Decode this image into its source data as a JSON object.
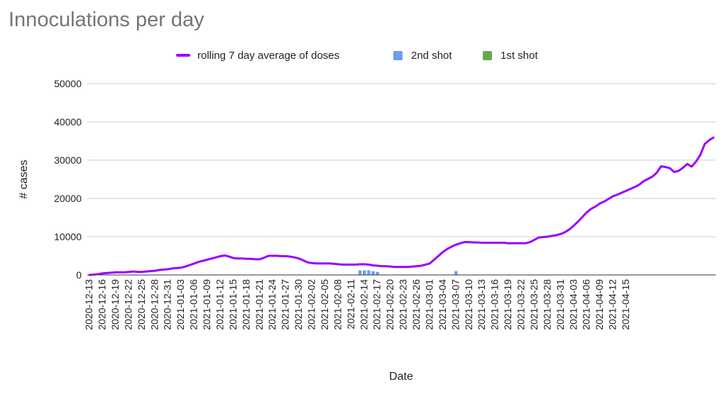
{
  "chart_data": {
    "type": "bar",
    "title": "Innoculations per day",
    "xlabel": "Date",
    "ylabel": "# cases",
    "ylim": [
      0,
      50000
    ],
    "y_ticks": [
      0,
      10000,
      20000,
      30000,
      40000,
      50000
    ],
    "stacked": true,
    "legend_position": "top",
    "grid": true,
    "colors": {
      "line": "#9900ff",
      "second": "#6d9eeb",
      "first": "#6aa84f"
    },
    "x_tick_labels": [
      "2020-12-13",
      "2020-12-16",
      "2020-12-19",
      "2020-12-22",
      "2020-12-25",
      "2020-12-28",
      "2020-12-31",
      "2021-01-03",
      "2021-01-06",
      "2021-01-09",
      "2021-01-12",
      "2021-01-15",
      "2021-01-18",
      "2021-01-21",
      "2021-01-24",
      "2021-01-27",
      "2021-01-30",
      "2021-02-02",
      "2021-02-05",
      "2021-02-08",
      "2021-02-11",
      "2021-02-14",
      "2021-02-17",
      "2021-02-20",
      "2021-02-23",
      "2021-02-26",
      "2021-03-01",
      "2021-03-04",
      "2021-03-07",
      "2021-03-10",
      "2021-03-13",
      "2021-03-16",
      "2021-03-19",
      "2021-03-22",
      "2021-03-25",
      "2021-03-28",
      "2021-03-31",
      "2021-04-03",
      "2021-04-06",
      "2021-04-09",
      "2021-04-12",
      "2021-04-15"
    ],
    "series": [
      {
        "name": "rolling 7 day average of doses",
        "kind": "line",
        "values": [
          0,
          100,
          200,
          400,
          500,
          600,
          700,
          700,
          700,
          800,
          900,
          800,
          800,
          900,
          1000,
          1100,
          1300,
          1400,
          1500,
          1700,
          1800,
          1900,
          2200,
          2600,
          3000,
          3400,
          3700,
          4000,
          4300,
          4600,
          4900,
          5100,
          4800,
          4400,
          4300,
          4300,
          4200,
          4200,
          4100,
          4100,
          4500,
          5000,
          5000,
          5000,
          4900,
          4900,
          4800,
          4600,
          4300,
          3800,
          3300,
          3100,
          3000,
          3000,
          3000,
          3000,
          2900,
          2800,
          2700,
          2700,
          2700,
          2700,
          2800,
          2800,
          2700,
          2500,
          2400,
          2300,
          2300,
          2200,
          2100,
          2100,
          2100,
          2100,
          2200,
          2300,
          2400,
          2700,
          3000,
          4000,
          5000,
          6000,
          6800,
          7400,
          7900,
          8300,
          8600,
          8600,
          8500,
          8500,
          8400,
          8400,
          8400,
          8400,
          8400,
          8400,
          8300,
          8300,
          8300,
          8300,
          8300,
          8600,
          9200,
          9800,
          9900,
          10000,
          10200,
          10400,
          10700,
          11200,
          11900,
          12900,
          14000,
          15200,
          16400,
          17300,
          17900,
          18700,
          19200,
          19900,
          20600,
          21000,
          21500,
          22000,
          22500,
          23000,
          23600,
          24500,
          25100,
          25700,
          26700,
          28400,
          28200,
          27900,
          26900,
          27200,
          28000,
          29000,
          28300,
          29600,
          31400,
          34200,
          35200,
          35900
        ]
      },
      {
        "name": "2nd shot",
        "values": [
          0,
          0,
          0,
          0,
          0,
          0,
          0,
          0,
          0,
          0,
          0,
          0,
          0,
          0,
          0,
          0,
          0,
          0,
          0,
          0,
          0,
          0,
          0,
          0,
          0,
          0,
          0,
          0,
          0,
          0,
          0,
          0,
          0,
          0,
          0,
          0,
          0,
          0,
          0,
          0,
          0,
          0,
          0,
          0,
          0,
          0,
          0,
          0,
          0,
          0,
          0,
          0,
          0,
          0,
          0,
          0,
          0,
          0,
          0,
          0,
          0,
          0,
          1200,
          1200,
          1200,
          1000,
          800,
          0,
          0,
          0,
          0,
          0,
          0,
          0,
          0,
          0,
          0,
          0,
          0,
          0,
          0,
          0,
          0,
          0,
          1000,
          0,
          0,
          0,
          0,
          0,
          0,
          0,
          0,
          0,
          0,
          0,
          0,
          0,
          0,
          0,
          0,
          0,
          0,
          0,
          0,
          0,
          0,
          0,
          0,
          0,
          0,
          0,
          0,
          0,
          0,
          0,
          0,
          0,
          0,
          0,
          0,
          0,
          0,
          0,
          0,
          0,
          0,
          0,
          0,
          0,
          0,
          0,
          0,
          0,
          0,
          0,
          0,
          0,
          0,
          0,
          0,
          0,
          0,
          0,
          0,
          0,
          0,
          0,
          0,
          0,
          0,
          0,
          0
        ]
      },
      {
        "name": "1st shot",
        "values": [
          0,
          0,
          0,
          0,
          0,
          0,
          0,
          0,
          0,
          0,
          0,
          0,
          0,
          0,
          0,
          0,
          0,
          0,
          0,
          0,
          0,
          0,
          0,
          0,
          0,
          0,
          0,
          0,
          0,
          0,
          0,
          0,
          0,
          0,
          0,
          0,
          0,
          0,
          0,
          0,
          0,
          0,
          0,
          0,
          0,
          0,
          0,
          0,
          0,
          0,
          0,
          0,
          0,
          0,
          0,
          0,
          0,
          0,
          0,
          0,
          0,
          0,
          0,
          0,
          0,
          0,
          0,
          0,
          0,
          0,
          0,
          0,
          0,
          0,
          0,
          0,
          0,
          0,
          0,
          0,
          0,
          0,
          0,
          0,
          0,
          0,
          0,
          0,
          0,
          0,
          0,
          0,
          0,
          0,
          0,
          0,
          0,
          0,
          0,
          0,
          0,
          0,
          0,
          0,
          0,
          0,
          0,
          0,
          0,
          0,
          0,
          0,
          0,
          0,
          0,
          0,
          0,
          0,
          0,
          0,
          0,
          0,
          0,
          0,
          0,
          0,
          0,
          0,
          0,
          0,
          0,
          0,
          0,
          0,
          0,
          0,
          0,
          0,
          0,
          0,
          0,
          0,
          0,
          0,
          0,
          0,
          0,
          0,
          0,
          0,
          0,
          0
        ]
      }
    ]
  },
  "legend": {
    "line_label": "rolling 7 day average of doses",
    "second_label": "2nd shot",
    "first_label": "1st shot"
  }
}
